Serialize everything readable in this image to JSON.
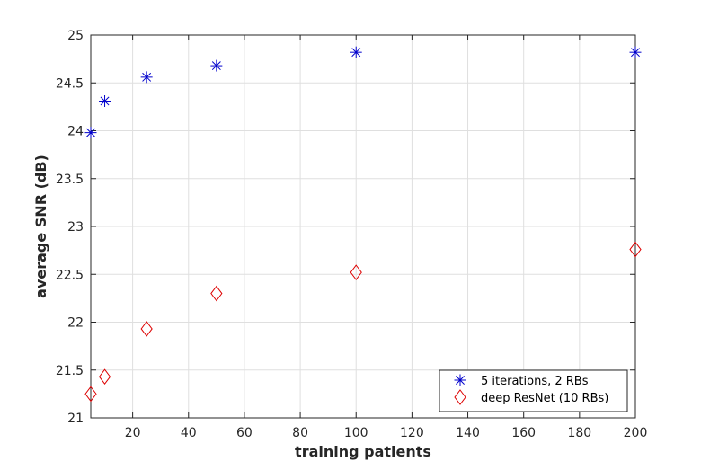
{
  "chart_data": {
    "type": "scatter",
    "title": "",
    "xlabel": "training patients",
    "ylabel": "average SNR (dB)",
    "xlim": [
      5,
      200
    ],
    "ylim": [
      21,
      25
    ],
    "xticks": [
      20,
      40,
      60,
      80,
      100,
      120,
      140,
      160,
      180,
      200
    ],
    "yticks": [
      21,
      21.5,
      22,
      22.5,
      23,
      23.5,
      24,
      24.5,
      25
    ],
    "grid": true,
    "legend_position": "bottom-right",
    "series": [
      {
        "name": "5 iterations, 2 RBs",
        "marker": "asterisk",
        "color": "#0000cc",
        "x": [
          5,
          10,
          25,
          50,
          100,
          200
        ],
        "y": [
          23.98,
          24.31,
          24.56,
          24.68,
          24.82,
          24.82
        ]
      },
      {
        "name": "deep ResNet (10 RBs)",
        "marker": "diamond",
        "color": "#dd0000",
        "x": [
          5,
          10,
          25,
          50,
          100,
          200
        ],
        "y": [
          21.25,
          21.43,
          21.93,
          22.3,
          22.52,
          22.76
        ]
      }
    ]
  }
}
